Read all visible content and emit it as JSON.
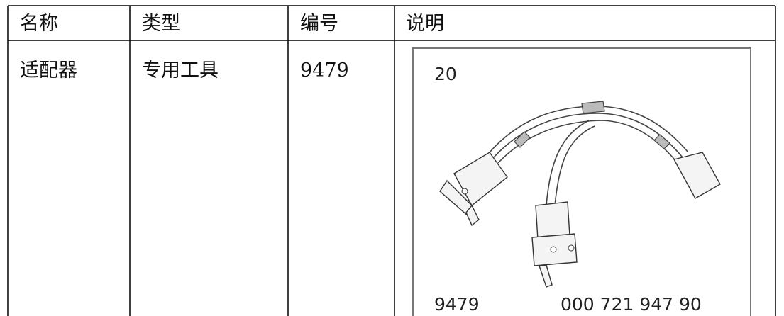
{
  "table": {
    "header": [
      "名称",
      "类型",
      "编号",
      "说明"
    ],
    "rows": [
      [
        "适配器",
        "专用工具",
        "9479"
      ]
    ]
  },
  "figure": {
    "labels": {
      "index": "20",
      "part": "9479",
      "number": "000 721 947 90"
    }
  }
}
